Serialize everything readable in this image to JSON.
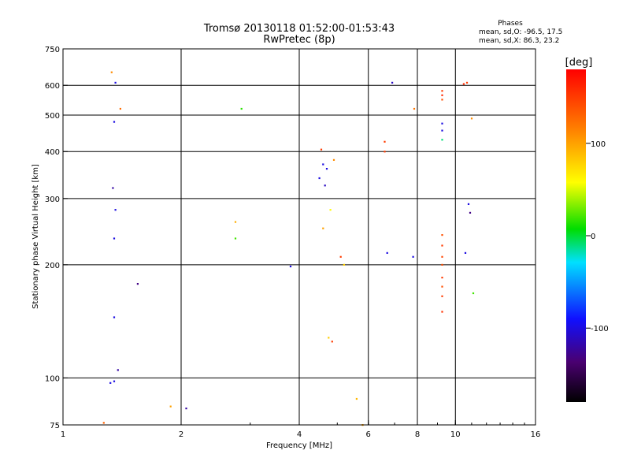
{
  "chart_data": {
    "type": "scatter",
    "title": "Tromsø 20130118 01:52:00-01:53:43",
    "subtitle": "RwPretec (8p)",
    "xlabel": "Frequency [MHz]",
    "ylabel": "Stationary phase Virtual Height [km]",
    "x_scale": "log2",
    "y_scale": "log",
    "xlim": [
      1,
      16
    ],
    "ylim": [
      75,
      750
    ],
    "x_ticks": [
      {
        "v": 1,
        "label": "1"
      },
      {
        "v": 2,
        "label": "2"
      },
      {
        "v": 4,
        "label": "4"
      },
      {
        "v": 6,
        "label": "6"
      },
      {
        "v": 8,
        "label": "8"
      },
      {
        "v": 10,
        "label": "10"
      },
      {
        "v": 16,
        "label": "16"
      }
    ],
    "y_ticks": [
      {
        "v": 75,
        "label": "75"
      },
      {
        "v": 100,
        "label": "100"
      },
      {
        "v": 200,
        "label": "200"
      },
      {
        "v": 300,
        "label": "300"
      },
      {
        "v": 400,
        "label": "400"
      },
      {
        "v": 500,
        "label": "500"
      },
      {
        "v": 600,
        "label": "600"
      },
      {
        "v": 750,
        "label": "750"
      }
    ],
    "grid": true,
    "grid_x": [
      2,
      4,
      6,
      8,
      10
    ],
    "grid_y": [
      100,
      200,
      300,
      400,
      500,
      600
    ],
    "stats": {
      "heading": "Phases",
      "line1": "mean, sd,O: -96.5, 17.5",
      "line2": "mean, sd,X:  86.3, 23.2"
    },
    "colorbar": {
      "label": "[deg]",
      "range": [
        -180,
        180
      ],
      "ticks": [
        {
          "v": 100,
          "label": "100"
        },
        {
          "v": 0,
          "label": "0"
        },
        {
          "v": -100,
          "label": "-100"
        }
      ]
    },
    "series": [
      {
        "color_value": "phase (deg)",
        "points": [
          {
            "x": 1.35,
            "y": 480,
            "p": -100
          },
          {
            "x": 1.36,
            "y": 610,
            "p": -100
          },
          {
            "x": 1.36,
            "y": 280,
            "p": -100
          },
          {
            "x": 1.35,
            "y": 235,
            "p": -100
          },
          {
            "x": 1.35,
            "y": 145,
            "p": -100
          },
          {
            "x": 1.35,
            "y": 98,
            "p": -100
          },
          {
            "x": 1.34,
            "y": 320,
            "p": -120
          },
          {
            "x": 1.55,
            "y": 178,
            "p": -130
          },
          {
            "x": 1.38,
            "y": 105,
            "p": -120
          },
          {
            "x": 1.32,
            "y": 97,
            "p": -100
          },
          {
            "x": 1.33,
            "y": 650,
            "p": 110
          },
          {
            "x": 1.4,
            "y": 520,
            "p": 125
          },
          {
            "x": 1.27,
            "y": 76,
            "p": 130
          },
          {
            "x": 2.06,
            "y": 83,
            "p": -120
          },
          {
            "x": 1.88,
            "y": 84,
            "p": 100
          },
          {
            "x": 2.75,
            "y": 260,
            "p": 95
          },
          {
            "x": 2.75,
            "y": 235,
            "p": 20
          },
          {
            "x": 2.85,
            "y": 520,
            "p": 15
          },
          {
            "x": 3.8,
            "y": 198,
            "p": -100
          },
          {
            "x": 4.55,
            "y": 405,
            "p": 150
          },
          {
            "x": 4.6,
            "y": 370,
            "p": -100
          },
          {
            "x": 4.5,
            "y": 340,
            "p": -100
          },
          {
            "x": 4.7,
            "y": 360,
            "p": -100
          },
          {
            "x": 4.65,
            "y": 325,
            "p": -110
          },
          {
            "x": 4.9,
            "y": 380,
            "p": 110
          },
          {
            "x": 4.8,
            "y": 280,
            "p": 60
          },
          {
            "x": 4.6,
            "y": 250,
            "p": 100
          },
          {
            "x": 5.2,
            "y": 200,
            "p": 80
          },
          {
            "x": 5.1,
            "y": 210,
            "p": 150
          },
          {
            "x": 4.75,
            "y": 128,
            "p": 80
          },
          {
            "x": 4.85,
            "y": 125,
            "p": 150
          },
          {
            "x": 5.6,
            "y": 88,
            "p": 90
          },
          {
            "x": 5.8,
            "y": 75,
            "p": 100
          },
          {
            "x": 6.6,
            "y": 425,
            "p": 150
          },
          {
            "x": 6.6,
            "y": 400,
            "p": 150
          },
          {
            "x": 6.9,
            "y": 610,
            "p": -110
          },
          {
            "x": 6.7,
            "y": 215,
            "p": -100
          },
          {
            "x": 7.8,
            "y": 210,
            "p": -100
          },
          {
            "x": 7.85,
            "y": 520,
            "p": 120
          },
          {
            "x": 9.25,
            "y": 580,
            "p": 150
          },
          {
            "x": 9.25,
            "y": 565,
            "p": 160
          },
          {
            "x": 9.25,
            "y": 550,
            "p": 140
          },
          {
            "x": 9.25,
            "y": 475,
            "p": -100
          },
          {
            "x": 9.25,
            "y": 455,
            "p": -100
          },
          {
            "x": 9.25,
            "y": 430,
            "p": -10
          },
          {
            "x": 9.25,
            "y": 240,
            "p": 140
          },
          {
            "x": 9.25,
            "y": 225,
            "p": 150
          },
          {
            "x": 9.25,
            "y": 210,
            "p": 145
          },
          {
            "x": 9.25,
            "y": 200,
            "p": 140
          },
          {
            "x": 9.25,
            "y": 185,
            "p": 150
          },
          {
            "x": 9.25,
            "y": 175,
            "p": 140
          },
          {
            "x": 9.25,
            "y": 165,
            "p": 150
          },
          {
            "x": 9.25,
            "y": 150,
            "p": 155
          },
          {
            "x": 10.5,
            "y": 605,
            "p": 160
          },
          {
            "x": 10.7,
            "y": 610,
            "p": 150
          },
          {
            "x": 10.8,
            "y": 290,
            "p": -100
          },
          {
            "x": 10.9,
            "y": 275,
            "p": -130
          },
          {
            "x": 10.6,
            "y": 215,
            "p": -100
          },
          {
            "x": 11.1,
            "y": 168,
            "p": 20
          },
          {
            "x": 11.0,
            "y": 490,
            "p": 110
          }
        ]
      }
    ]
  }
}
